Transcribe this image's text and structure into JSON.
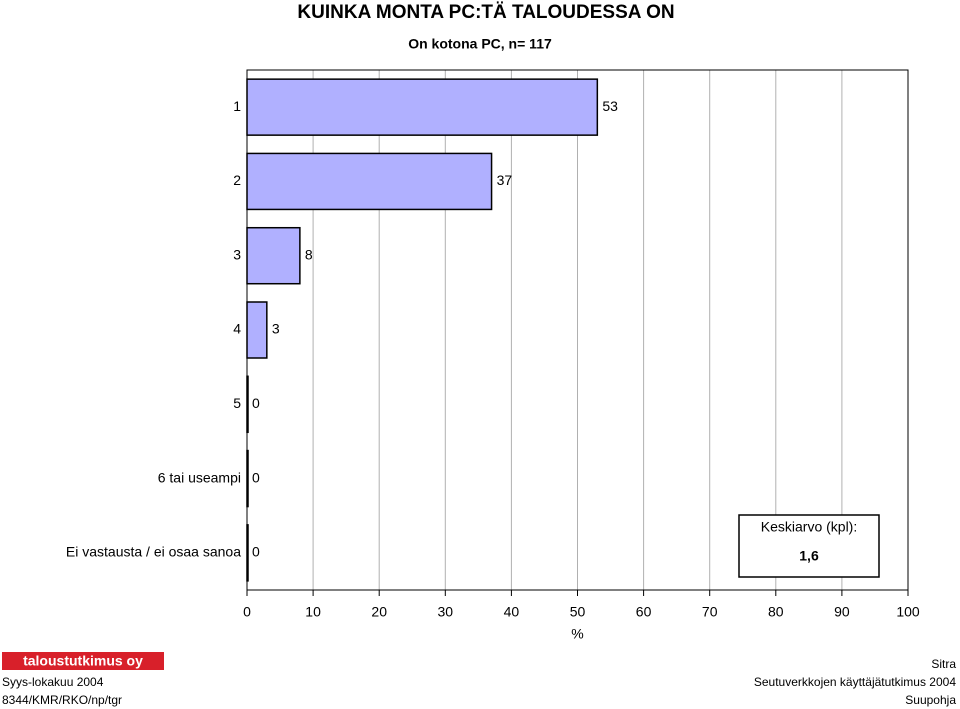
{
  "chart_data": {
    "type": "hbar",
    "title": "KUINKA MONTA PC:TÄ TALOUDESSA ON",
    "subtitle": "On kotona PC, n= 117",
    "categories": [
      "1",
      "2",
      "3",
      "4",
      "5",
      "6 tai useampi",
      "Ei vastausta / ei osaa sanoa"
    ],
    "values": [
      53,
      37,
      8,
      3,
      0,
      0,
      0
    ],
    "color": "#b0b0ff",
    "xlim": [
      0,
      100
    ],
    "xticks": [
      0,
      10,
      20,
      30,
      40,
      50,
      60,
      70,
      80,
      90,
      100
    ],
    "xlabel": "%",
    "grid": true,
    "mean_label": "Keskiarvo (kpl):",
    "mean_value": "1,6"
  },
  "footer": {
    "logo": "taloustutkimus oy",
    "date": "Syys-lokakuu 2004",
    "code": "8344/KMR/RKO/np/tgr",
    "client": "Sitra",
    "study": "Seutuverkkojen käyttäjätutkimus 2004",
    "region": "Suupohja"
  }
}
